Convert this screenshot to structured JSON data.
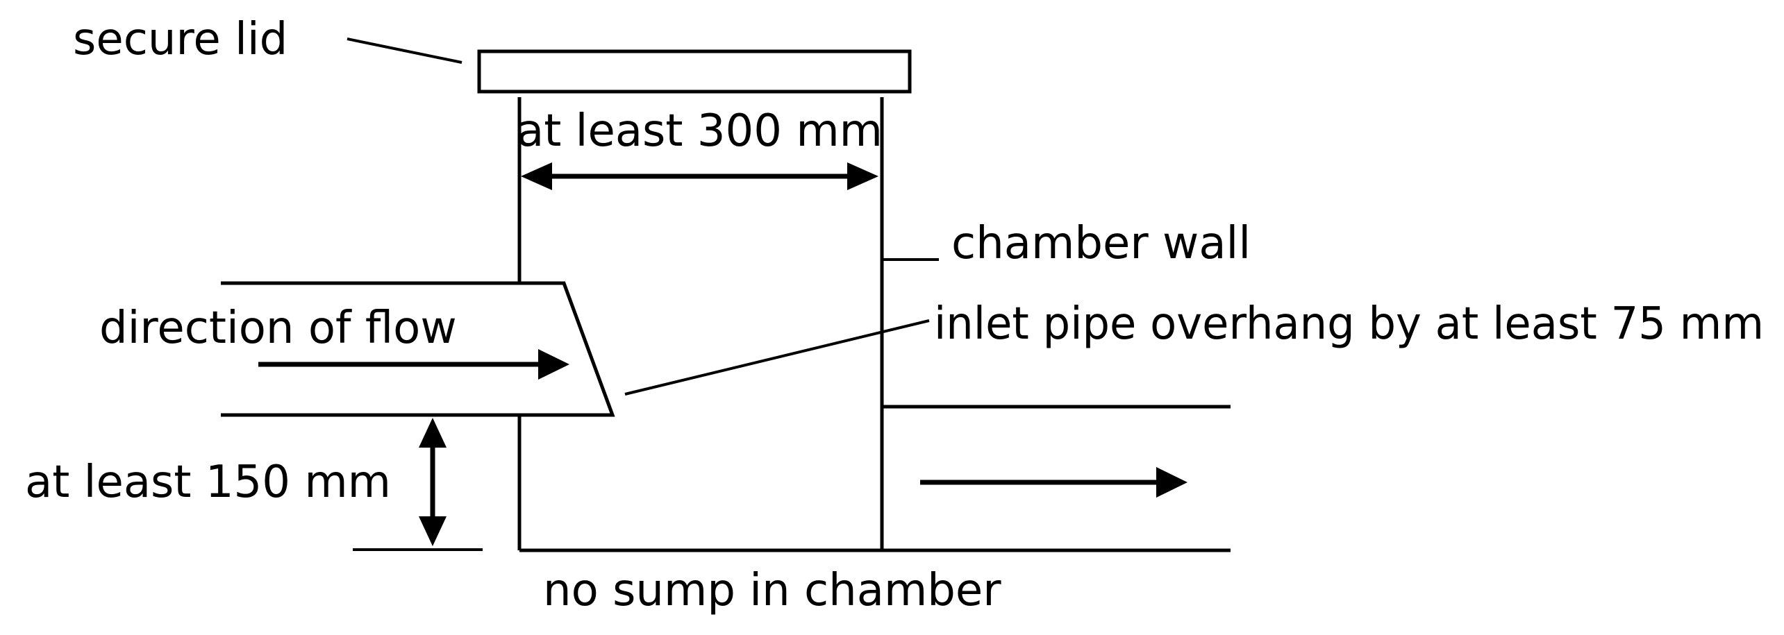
{
  "labels": {
    "secure_lid": "secure lid",
    "width": "at least 300 mm",
    "chamber_wall": "chamber wall",
    "direction_of_flow": "direction of flow",
    "inlet_overhang": "inlet pipe overhang by at least 75 mm",
    "drop_height": "at least 150 mm",
    "no_sump": "no sump in chamber"
  }
}
